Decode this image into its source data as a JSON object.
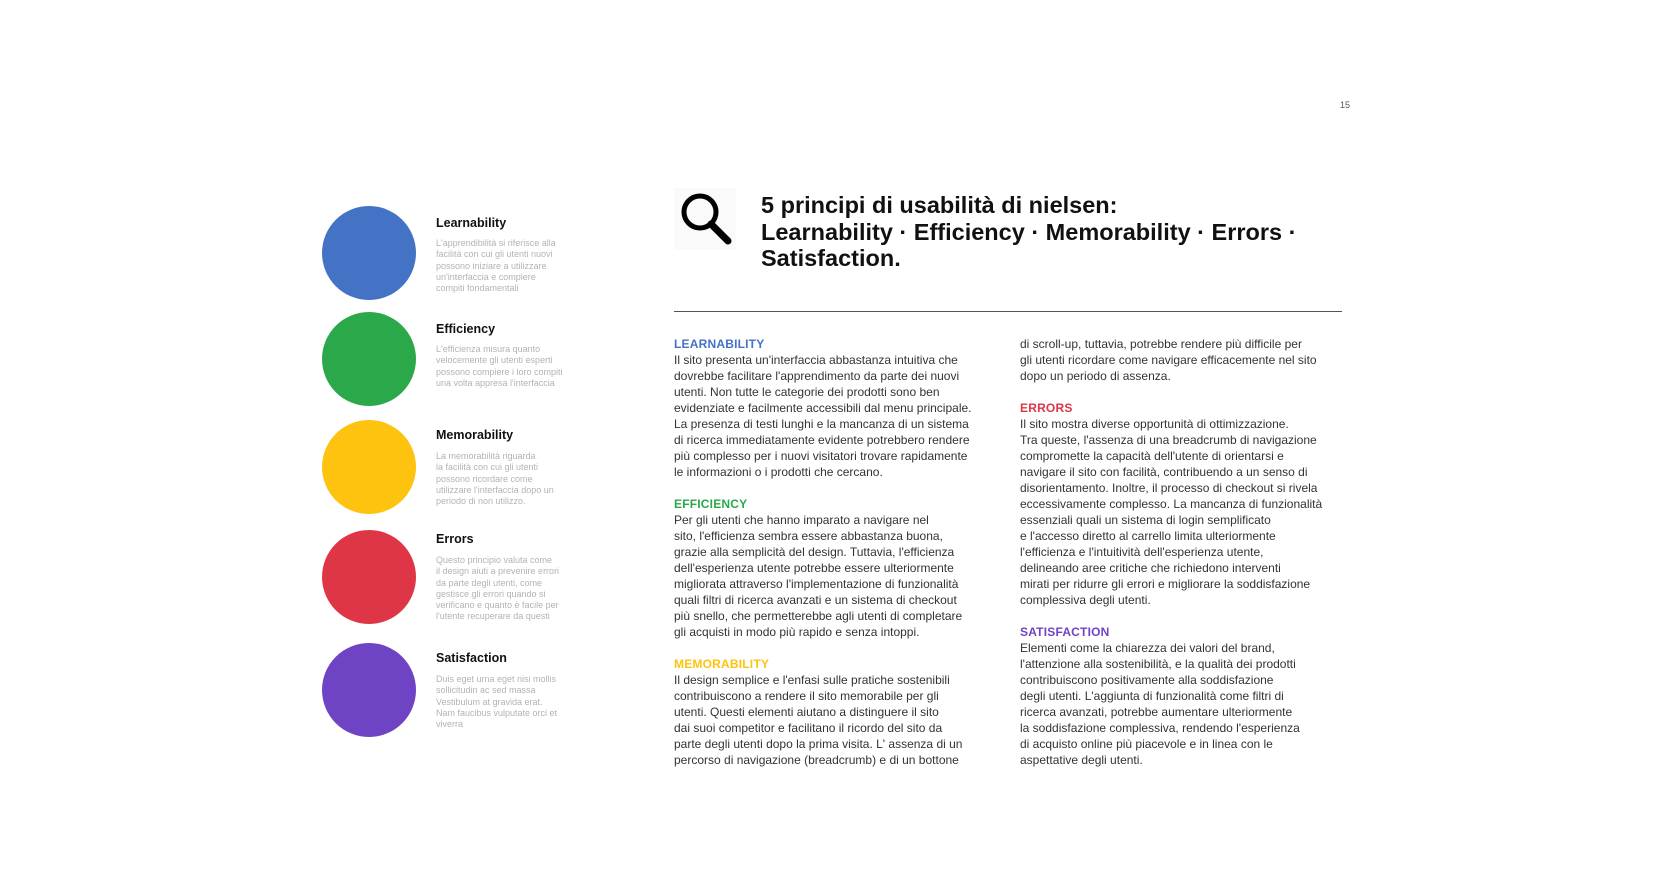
{
  "page_number": "15",
  "colors": {
    "learnability": "#4472C4",
    "efficiency": "#2AA84A",
    "memorability": "#FEC30E",
    "errors": "#DE3646",
    "satisfaction": "#6F44C4"
  },
  "principles": [
    {
      "title": "Learnability",
      "color": "#4472C4",
      "desc_lines": [
        "L'apprendibilità si riferisce alla",
        "facilità con cui gli utenti nuovi",
        "possono iniziare a utilizzare",
        "un'interfaccia e compiere",
        "compiti fondamentali"
      ]
    },
    {
      "title": "Efficiency",
      "color": "#2AA84A",
      "desc_lines": [
        "L'efficienza misura quanto",
        "velocemente gli utenti esperti",
        "possono compiere i loro compiti",
        "una volta appresa l'interfaccia"
      ]
    },
    {
      "title": "Memorability",
      "color": "#FEC30E",
      "desc_lines": [
        "La memorabilità riguarda",
        "la facilità con cui gli utenti",
        "possono ricordare come",
        "utilizzare l'interfaccia dopo un",
        "periodo di non utilizzo."
      ]
    },
    {
      "title": "Errors",
      "color": "#DE3646",
      "desc_lines": [
        "Questo principio valuta come",
        "il design aiuti a prevenire errori",
        "da parte degli utenti, come",
        "gestisce gli errori quando si",
        "verificano e quanto è facile per",
        "l'utente recuperare da questi"
      ]
    },
    {
      "title": "Satisfaction",
      "color": "#6F44C4",
      "desc_lines": [
        "Duis eget urna eget nisi mollis",
        "sollicitudin ac sed massa",
        "Vestibulum at gravida erat.",
        "Nam faucibus vulputate orci et",
        "viverra"
      ]
    }
  ],
  "header": {
    "icon": "search-icon",
    "title_lines": [
      "5 principi di usabilità di nielsen:",
      "Learnability · Efficiency · Memorability · Errors ·",
      "Satisfaction."
    ]
  },
  "sections": {
    "learnability": {
      "title": "LEARNABILITY",
      "lines": [
        "Il sito presenta un'interfaccia abbastanza intuitiva che",
        "dovrebbe facilitare l'apprendimento da parte dei nuovi",
        "utenti. Non tutte le categorie dei prodotti sono ben",
        "evidenziate e facilmente accessibili dal menu principale.",
        "La presenza di testi lunghi e la mancanza di un sistema",
        "di ricerca immediatamente evidente potrebbero rendere",
        "più complesso per i nuovi visitatori trovare rapidamente",
        "le informazioni o i prodotti che cercano."
      ]
    },
    "efficiency": {
      "title": "EFFICIENCY",
      "lines": [
        "Per gli utenti che hanno imparato a navigare nel",
        "sito, l'efficienza sembra essere abbastanza buona,",
        "grazie alla semplicità del design. Tuttavia, l'efficienza",
        "dell'esperienza utente potrebbe essere ulteriormente",
        "migliorata attraverso l'implementazione di funzionalità",
        "quali filtri di ricerca avanzati e un sistema di checkout",
        "più snello, che permetterebbe agli utenti di completare",
        "gli acquisti in modo più rapido e senza intoppi."
      ]
    },
    "memorability": {
      "title": "MEMORABILITY",
      "lines": [
        "Il design semplice e l'enfasi sulle pratiche sostenibili",
        "contribuiscono a rendere il sito memorabile per gli",
        "utenti. Questi elementi aiutano a distinguere il sito",
        "dai suoi competitor e facilitano il ricordo del sito da",
        "parte degli utenti dopo la prima visita.  L' assenza di un",
        "percorso di navigazione (breadcrumb) e di un bottone"
      ]
    },
    "memorability_cont": {
      "lines": [
        "di scroll-up, tuttavia, potrebbe rendere più difficile per",
        "gli utenti ricordare come navigare efficacemente nel sito",
        "dopo un periodo di assenza."
      ]
    },
    "errors": {
      "title": "ERRORS",
      "lines": [
        "Il sito mostra diverse opportunità di ottimizzazione.",
        "Tra queste, l'assenza di una breadcrumb di navigazione",
        "compromette la capacità dell'utente di orientarsi e",
        "navigare il sito con facilità, contribuendo a un senso di",
        "disorientamento. Inoltre, il processo di checkout si rivela",
        "eccessivamente complesso. La mancanza di funzionalità",
        "essenziali quali un sistema di login semplificato",
        "e l'accesso diretto al carrello limita ulteriormente",
        "l'efficienza e l'intuitività dell'esperienza utente,",
        "delineando aree critiche che richiedono interventi",
        "mirati per ridurre gli errori e migliorare la soddisfazione",
        "complessiva degli utenti."
      ]
    },
    "satisfaction": {
      "title": "SATISFACTION",
      "lines": [
        "Elementi come la chiarezza dei valori del brand,",
        "l'attenzione alla sostenibilità, e la qualità dei prodotti",
        "contribuiscono positivamente alla soddisfazione",
        "degli utenti. L'aggiunta di funzionalità come filtri di",
        "ricerca avanzati, potrebbe aumentare ulteriormente",
        "la soddisfazione complessiva, rendendo l'esperienza",
        "di acquisto online più piacevole e in linea con le",
        "aspettative degli utenti."
      ]
    }
  }
}
